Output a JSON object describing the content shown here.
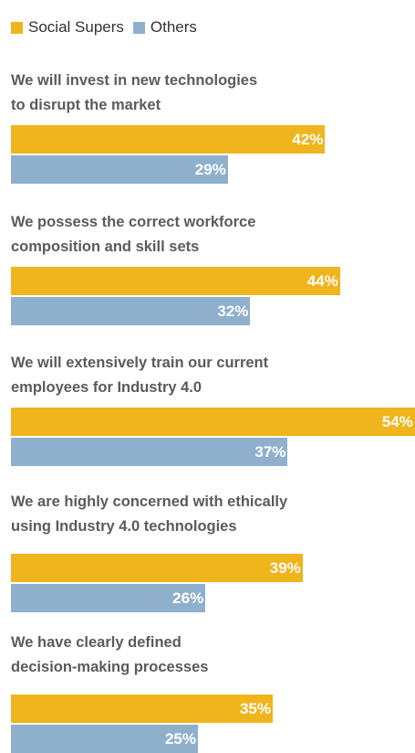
{
  "chart_data": {
    "type": "bar",
    "orientation": "horizontal",
    "categories": [
      "We will invest in new technologies\nto disrupt the market",
      "We possess the correct workforce\ncomposition and skill sets",
      "We will extensively train our current\nemployees for Industry 4.0",
      "We are highly concerned with ethically\nusing Industry 4.0 technologies",
      "We have clearly defined\ndecision-making processes"
    ],
    "series": [
      {
        "name": "Social Supers",
        "color": "#f0b41c",
        "values": [
          42,
          44,
          54,
          39,
          35
        ],
        "value_labels": [
          "42%",
          "44%",
          "54%",
          "39%",
          "35%"
        ]
      },
      {
        "name": "Others",
        "color": "#8fb0cc",
        "values": [
          29,
          32,
          37,
          26,
          25
        ],
        "value_labels": [
          "29%",
          "32%",
          "37%",
          "26%",
          "25%"
        ]
      }
    ],
    "legend": "top-left"
  }
}
